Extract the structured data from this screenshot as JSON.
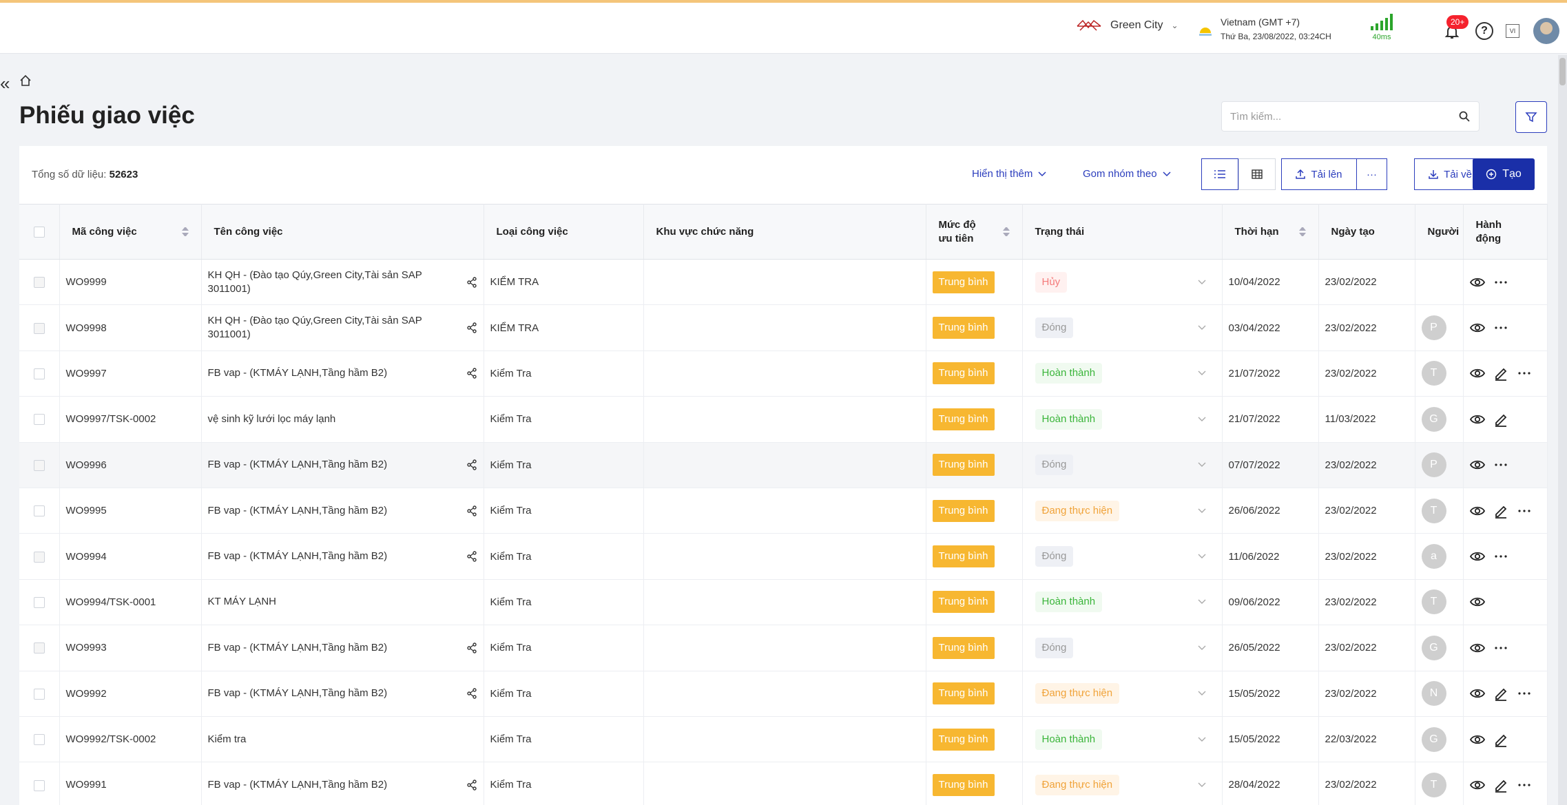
{
  "topbar": {
    "org_name": "Green City",
    "timezone_label": "Vietnam (GMT +7)",
    "datetime": "Thứ Ba, 23/08/2022, 03:24CH",
    "latency": "40ms",
    "notification_count": "20+",
    "lang_code": "VI"
  },
  "page": {
    "title": "Phiếu giao việc",
    "search_placeholder": "Tìm kiếm..."
  },
  "toolbar": {
    "total_label": "Tổng số dữ liệu:",
    "total_value": "52623",
    "show_more": "Hiển thị thêm",
    "group_by": "Gom nhóm theo",
    "upload": "Tải lên",
    "more": "···",
    "download": "Tải về",
    "create": "Tạo"
  },
  "table": {
    "headers": {
      "code": "Mã công việc",
      "name": "Tên công việc",
      "type": "Loại công việc",
      "area": "Khu vực chức năng",
      "priority_l1": "Mức độ",
      "priority_l2": "ưu tiên",
      "status": "Trạng thái",
      "deadline": "Thời hạn",
      "created": "Ngày tạo",
      "person": "Người",
      "action_l1": "Hành",
      "action_l2": "động"
    },
    "rows": [
      {
        "code": "WO9999",
        "name": "KH QH - (Đào tạo Qúy,Green City,Tài sản SAP 3011001)",
        "type": "KIỂM TRA",
        "priority": "Trung bình",
        "status": "Hủy",
        "deadline": "10/04/2022",
        "created": "23/02/2022",
        "user": ""
      },
      {
        "code": "WO9998",
        "name": "KH QH - (Đào tạo Qúy,Green City,Tài sản SAP 3011001)",
        "type": "KIỂM TRA",
        "priority": "Trung bình",
        "status": "Đóng",
        "deadline": "03/04/2022",
        "created": "23/02/2022",
        "user": "P"
      },
      {
        "code": "WO9997",
        "name": "FB vap - (KTMÁY LẠNH,Tầng hầm B2)",
        "type": "Kiểm Tra",
        "priority": "Trung bình",
        "status": "Hoàn thành",
        "deadline": "21/07/2022",
        "created": "23/02/2022",
        "user": "T"
      },
      {
        "code": "WO9997/TSK-0002",
        "name": "vệ sinh kỹ lưới lọc máy lạnh",
        "type": "Kiểm Tra",
        "priority": "Trung bình",
        "status": "Hoàn thành",
        "deadline": "21/07/2022",
        "created": "11/03/2022",
        "user": "G"
      },
      {
        "code": "WO9996",
        "name": "FB vap - (KTMÁY LẠNH,Tầng hầm B2)",
        "type": "Kiểm Tra",
        "priority": "Trung bình",
        "status": "Đóng",
        "deadline": "07/07/2022",
        "created": "23/02/2022",
        "user": "P"
      },
      {
        "code": "WO9995",
        "name": "FB vap - (KTMÁY LẠNH,Tầng hầm B2)",
        "type": "Kiểm Tra",
        "priority": "Trung bình",
        "status": "Đang thực hiện",
        "deadline": "26/06/2022",
        "created": "23/02/2022",
        "user": "T"
      },
      {
        "code": "WO9994",
        "name": "FB vap - (KTMÁY LẠNH,Tầng hầm B2)",
        "type": "Kiểm Tra",
        "priority": "Trung bình",
        "status": "Đóng",
        "deadline": "11/06/2022",
        "created": "23/02/2022",
        "user": "a"
      },
      {
        "code": "WO9994/TSK-0001",
        "name": "KT MÁY LẠNH",
        "type": "Kiểm Tra",
        "priority": "Trung bình",
        "status": "Hoàn thành",
        "deadline": "09/06/2022",
        "created": "23/02/2022",
        "user": "T"
      },
      {
        "code": "WO9993",
        "name": "FB vap - (KTMÁY LẠNH,Tầng hầm B2)",
        "type": "Kiểm Tra",
        "priority": "Trung bình",
        "status": "Đóng",
        "deadline": "26/05/2022",
        "created": "23/02/2022",
        "user": "G"
      },
      {
        "code": "WO9992",
        "name": "FB vap - (KTMÁY LẠNH,Tầng hầm B2)",
        "type": "Kiểm Tra",
        "priority": "Trung bình",
        "status": "Đang thực hiện",
        "deadline": "15/05/2022",
        "created": "23/02/2022",
        "user": "N"
      },
      {
        "code": "WO9992/TSK-0002",
        "name": "Kiểm tra",
        "type": "Kiểm Tra",
        "priority": "Trung bình",
        "status": "Hoàn thành",
        "deadline": "15/05/2022",
        "created": "22/03/2022",
        "user": "G"
      },
      {
        "code": "WO9991",
        "name": "FB vap - (KTMÁY LẠNH,Tầng hầm B2)",
        "type": "Kiểm Tra",
        "priority": "Trung bình",
        "status": "Đang thực hiện",
        "deadline": "28/04/2022",
        "created": "23/02/2022",
        "user": "T"
      }
    ]
  },
  "colors": {
    "accent": "#2b3dbd",
    "primary_button": "#1a2fa8",
    "priority_bg": "#f7b731",
    "overdue": "#f5222d"
  }
}
